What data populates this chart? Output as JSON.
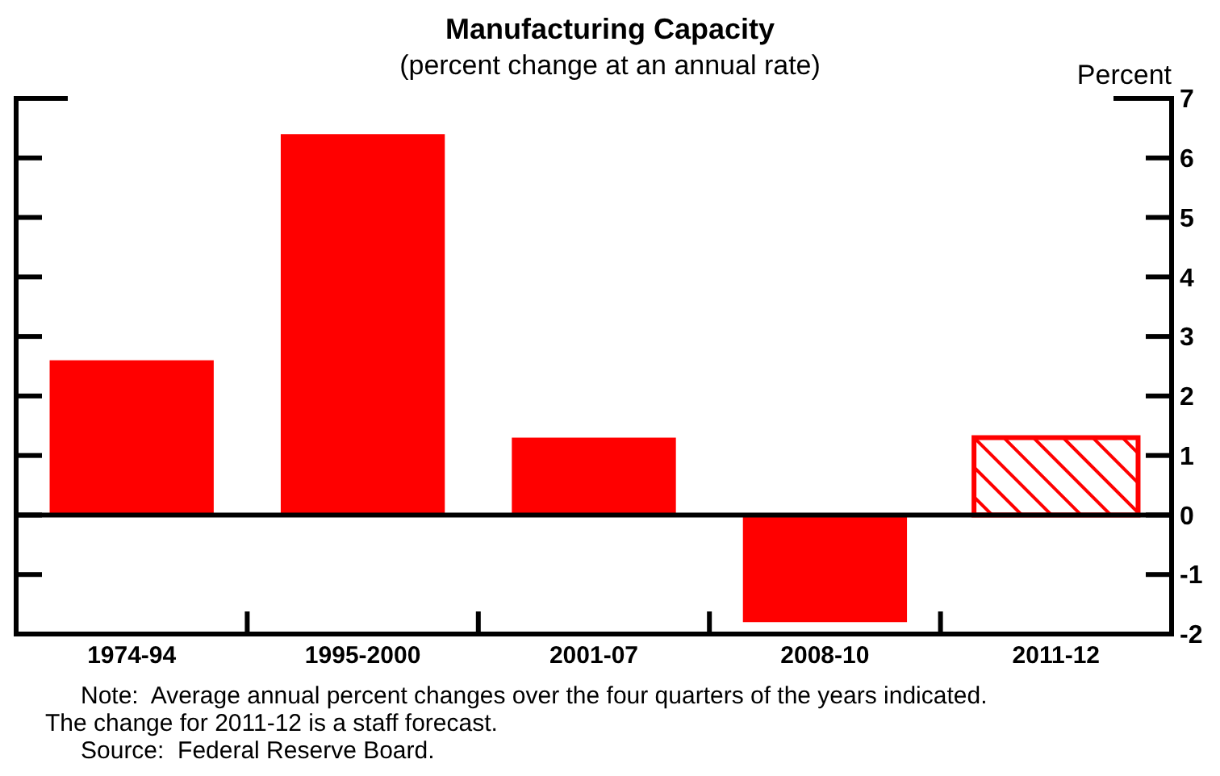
{
  "chart_data": {
    "type": "bar",
    "title": "Manufacturing Capacity",
    "subtitle": "(percent change at an annual rate)",
    "ylabel": "Percent",
    "categories": [
      "1974-94",
      "1995-2000",
      "2001-07",
      "2008-10",
      "2011-12"
    ],
    "series": [
      {
        "color": "#ff0000",
        "values": [
          2.6,
          6.4,
          1.3,
          -1.8,
          null
        ]
      },
      {
        "color": "#ff0000",
        "values": [
          null,
          null,
          null,
          null,
          1.3
        ]
      }
    ],
    "ylim": [
      -2,
      7
    ],
    "yticks": [
      -2,
      -1,
      0,
      1,
      2,
      3,
      4,
      5,
      6,
      7
    ],
    "annotations": [
      "Note:  Average annual percent changes over the four quarters of the years indicated.",
      "The change for 2011-12 is a staff forecast.",
      "Source:  Federal Reserve Board."
    ]
  }
}
